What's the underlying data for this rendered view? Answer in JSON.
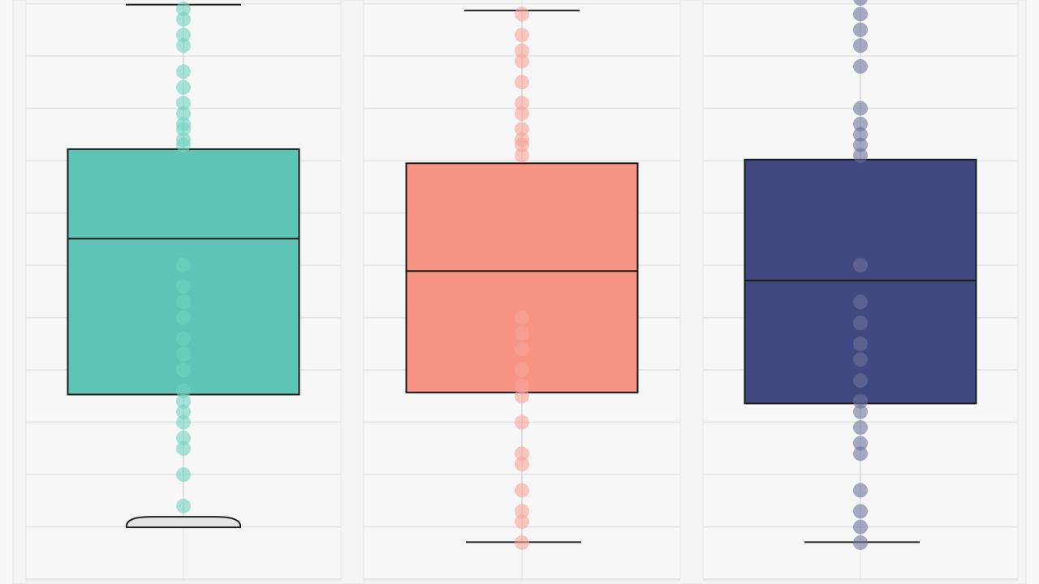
{
  "chart_data": {
    "type": "box",
    "title": "",
    "xlabel": "",
    "ylabel": "",
    "ylim": [
      -0.09,
      11.07
    ],
    "grid": true,
    "legend": "none",
    "facets": 3,
    "series": [
      {
        "color": "#5fc4b5",
        "point_color": "#6fd3bf",
        "whisker_high": 10.98,
        "q3": 8.22,
        "median": 6.51,
        "q1": 3.53,
        "whisker_low": 1.07,
        "points": [
          10.9,
          10.7,
          10.4,
          10.2,
          9.7,
          9.4,
          9.1,
          8.9,
          8.7,
          8.6,
          8.4,
          8.3,
          6.0,
          5.6,
          5.3,
          5.0,
          4.6,
          4.3,
          4.0,
          3.6,
          3.4,
          3.2,
          3.0,
          2.7,
          2.5,
          2.0,
          1.4
        ]
      },
      {
        "color": "#f89484",
        "point_color": "#f9a39a",
        "whisker_high": 10.87,
        "q3": 7.95,
        "median": 5.89,
        "q1": 3.57,
        "whisker_low": 0.71,
        "points": [
          10.8,
          10.4,
          10.1,
          9.9,
          9.5,
          9.1,
          8.9,
          8.6,
          8.4,
          8.3,
          8.1,
          5.0,
          4.7,
          4.4,
          4.0,
          3.7,
          3.5,
          3.0,
          2.4,
          2.2,
          1.7,
          1.3,
          1.1,
          0.7
        ]
      },
      {
        "color": "#414a80",
        "point_color": "#6d739c",
        "whisker_high": 11.2,
        "q3": 8.02,
        "median": 5.71,
        "q1": 3.36,
        "whisker_low": 0.71,
        "points": [
          11.1,
          10.8,
          10.5,
          10.2,
          9.8,
          9.0,
          8.7,
          8.5,
          8.3,
          8.1,
          6.0,
          5.3,
          4.9,
          4.5,
          4.2,
          3.8,
          3.4,
          3.2,
          2.9,
          2.6,
          2.4,
          1.7,
          1.3,
          1.0,
          0.7
        ]
      }
    ]
  }
}
